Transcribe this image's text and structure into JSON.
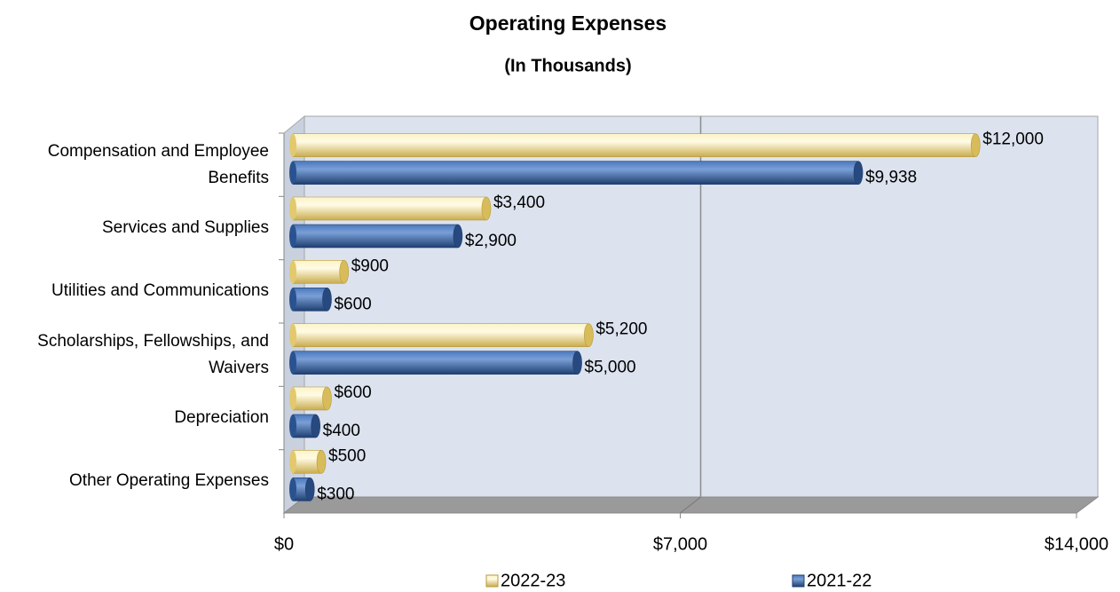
{
  "chart_data": {
    "type": "bar",
    "orientation": "horizontal",
    "title": "Operating Expenses",
    "subtitle": "(In Thousands)",
    "categories": [
      "Compensation and Employee Benefits",
      "Services and Supplies",
      "Utilities and Communications",
      "Scholarships, Fellowships, and Waivers",
      "Depreciation",
      "Other Operating Expenses"
    ],
    "series": [
      {
        "name": "2022-23",
        "color": "#e9d27c",
        "values": [
          12000,
          3400,
          900,
          5200,
          600,
          500
        ],
        "value_labels": [
          "$12,000",
          "$3,400",
          "$900",
          "$5,200",
          "$600",
          "$500"
        ]
      },
      {
        "name": "2021-22",
        "color": "#33609f",
        "values": [
          9938,
          2900,
          600,
          5000,
          400,
          300
        ],
        "value_labels": [
          "$9,938",
          "$2,900",
          "$600",
          "$5,000",
          "$400",
          "$300"
        ]
      }
    ],
    "xlim": [
      0,
      14000
    ],
    "xticks": [
      {
        "value": 0,
        "label": "$0"
      },
      {
        "value": 7000,
        "label": "$7,000"
      },
      {
        "value": 14000,
        "label": "$14,000"
      }
    ],
    "grid": true,
    "legend": "bottom"
  }
}
